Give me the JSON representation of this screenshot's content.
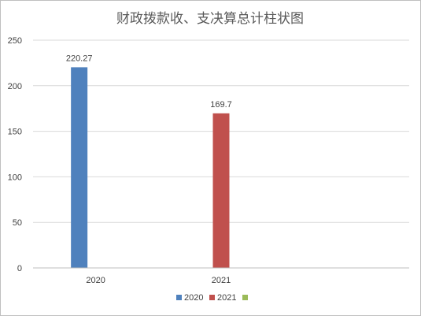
{
  "chart_data": {
    "type": "bar",
    "title": "财政拨款收、支决算总计柱状图",
    "categories": [
      "2020",
      "2021",
      ""
    ],
    "series": [
      {
        "name": "2020",
        "color": "#4F81BD",
        "values": [
          220.27,
          null,
          null
        ]
      },
      {
        "name": "2021",
        "color": "#C0504D",
        "values": [
          null,
          169.7,
          null
        ]
      },
      {
        "name": "",
        "color": "#9BBB59",
        "values": [
          null,
          null,
          null
        ]
      }
    ],
    "data_labels": [
      "220.27",
      "169.7"
    ],
    "ylim": [
      0,
      250
    ],
    "yticks": [
      0,
      50,
      100,
      150,
      200,
      250
    ],
    "grid": true,
    "legend": "bottom",
    "xlabel": "",
    "ylabel": ""
  }
}
